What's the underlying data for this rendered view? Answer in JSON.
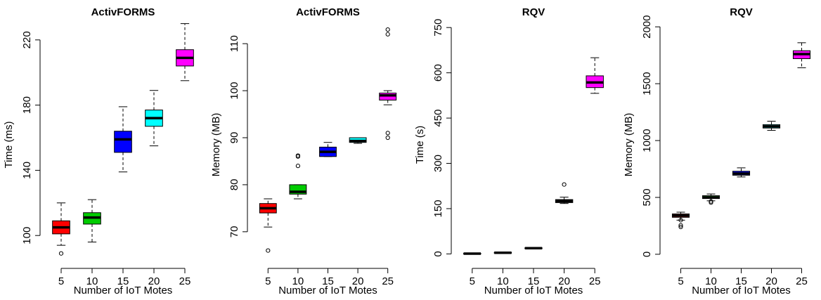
{
  "chart_data": [
    {
      "type": "box",
      "title": "ActivFORMS",
      "xlabel": "Number of IoT Motes",
      "ylabel": "Time (ms)",
      "ylim": [
        85,
        235
      ],
      "yticks": [
        100,
        140,
        180,
        220
      ],
      "categories": [
        "5",
        "10",
        "15",
        "20",
        "25"
      ],
      "boxes": [
        {
          "min": 94,
          "q1": 101,
          "median": 105,
          "q3": 109,
          "max": 120,
          "outliers": [
            89
          ],
          "color": "#ff0000"
        },
        {
          "min": 96,
          "q1": 107,
          "median": 111,
          "q3": 114,
          "max": 122,
          "outliers": [],
          "color": "#00cc00"
        },
        {
          "min": 139,
          "q1": 151,
          "median": 159,
          "q3": 164,
          "max": 179,
          "outliers": [],
          "color": "#0000ff"
        },
        {
          "min": 155,
          "q1": 167,
          "median": 172,
          "q3": 177,
          "max": 189,
          "outliers": [],
          "color": "#00ffff"
        },
        {
          "min": 195,
          "q1": 204,
          "median": 209,
          "q3": 214,
          "max": 230,
          "outliers": [],
          "color": "#ff00ff"
        }
      ]
    },
    {
      "type": "box",
      "title": "ActivFORMS",
      "xlabel": "Number of IoT Motes",
      "ylabel": "Memory (MB)",
      "ylim": [
        64,
        116
      ],
      "yticks": [
        70,
        80,
        90,
        100,
        110
      ],
      "categories": [
        "5",
        "10",
        "15",
        "20",
        "25"
      ],
      "boxes": [
        {
          "min": 71,
          "q1": 74,
          "median": 75,
          "q3": 76,
          "max": 77,
          "outliers": [
            66
          ],
          "color": "#ff0000"
        },
        {
          "min": 77,
          "q1": 78,
          "median": 78.5,
          "q3": 80,
          "max": 80,
          "outliers": [
            84,
            86,
            86.2
          ],
          "color": "#00cc00"
        },
        {
          "min": 86,
          "q1": 86,
          "median": 87,
          "q3": 88,
          "max": 89,
          "outliers": [],
          "color": "#0000ff"
        },
        {
          "min": 88.8,
          "q1": 89,
          "median": 89.3,
          "q3": 90,
          "max": 90,
          "outliers": [],
          "color": "#00ffff"
        },
        {
          "min": 97,
          "q1": 98,
          "median": 99,
          "q3": 99.5,
          "max": 100,
          "outliers": [
            90,
            91,
            112,
            113
          ],
          "color": "#ff00ff"
        }
      ]
    },
    {
      "type": "box",
      "title": "RQV",
      "xlabel": "Number of IoT Motes",
      "ylabel": "Time (s)",
      "ylim": [
        -20,
        790
      ],
      "yticks": [
        0,
        150,
        300,
        450,
        600,
        750
      ],
      "categories": [
        "5",
        "10",
        "15",
        "20",
        "25"
      ],
      "boxes": [
        {
          "min": 0,
          "q1": 0,
          "median": 1,
          "q3": 2,
          "max": 3,
          "outliers": [],
          "color": "#ff0000"
        },
        {
          "min": 2,
          "q1": 3,
          "median": 4,
          "q3": 5,
          "max": 6,
          "outliers": [],
          "color": "#00cc00"
        },
        {
          "min": 17,
          "q1": 18,
          "median": 19,
          "q3": 20,
          "max": 21,
          "outliers": [],
          "color": "#0000ff"
        },
        {
          "min": 167,
          "q1": 170,
          "median": 175,
          "q3": 180,
          "max": 188,
          "outliers": [
            230
          ],
          "color": "#00ffff"
        },
        {
          "min": 532,
          "q1": 551,
          "median": 568,
          "q3": 590,
          "max": 650,
          "outliers": [],
          "color": "#ff00ff"
        }
      ]
    },
    {
      "type": "box",
      "title": "RQV",
      "xlabel": "Number of IoT Motes",
      "ylabel": "Memory (MB)",
      "ylim": [
        -50,
        2100
      ],
      "yticks": [
        0,
        500,
        1000,
        1500,
        2000
      ],
      "categories": [
        "5",
        "10",
        "15",
        "20",
        "25"
      ],
      "boxes": [
        {
          "min": 300,
          "q1": 325,
          "median": 340,
          "q3": 355,
          "max": 370,
          "outliers": [
            240,
            255,
            300
          ],
          "color": "#ff0000"
        },
        {
          "min": 470,
          "q1": 490,
          "median": 500,
          "q3": 515,
          "max": 530,
          "outliers": [
            455,
            465
          ],
          "color": "#00cc00"
        },
        {
          "min": 680,
          "q1": 695,
          "median": 710,
          "q3": 730,
          "max": 760,
          "outliers": [],
          "color": "#0000ff"
        },
        {
          "min": 1090,
          "q1": 1110,
          "median": 1125,
          "q3": 1140,
          "max": 1170,
          "outliers": [],
          "color": "#00ffff"
        },
        {
          "min": 1640,
          "q1": 1720,
          "median": 1760,
          "q3": 1790,
          "max": 1860,
          "outliers": [],
          "color": "#ff00ff"
        }
      ]
    }
  ]
}
